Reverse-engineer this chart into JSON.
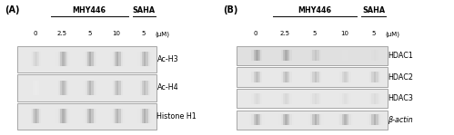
{
  "fig_bg": "#d8d8d8",
  "panel_bg": "#ffffff",
  "blot_bg": "#e8e8e8",
  "panel_A": {
    "label": "(A)",
    "group_label": "MHY446",
    "group2_label": "SAHA",
    "concentrations": [
      "0",
      "2.5",
      "5",
      "10",
      "5"
    ],
    "uM_label": "(μM)",
    "rows": [
      "Ac-H3",
      "Ac-H4",
      "Histone H1"
    ],
    "band_data": {
      "Ac-H3": [
        0.35,
        0.8,
        0.9,
        0.85,
        0.8
      ],
      "Ac-H4": [
        0.05,
        0.72,
        0.78,
        0.72,
        0.68
      ],
      "Histone H1": [
        0.75,
        0.85,
        0.9,
        0.8,
        0.85
      ]
    }
  },
  "panel_B": {
    "label": "(B)",
    "group_label": "MHY446",
    "group2_label": "SAHA",
    "concentrations": [
      "0",
      "2.5",
      "5",
      "10",
      "5"
    ],
    "uM_label": "(μM)",
    "rows": [
      "HDAC1",
      "HDAC2",
      "HDAC3",
      "β-actin"
    ],
    "band_data": {
      "HDAC1": [
        0.9,
        0.85,
        0.5,
        0.12,
        0.18
      ],
      "HDAC2": [
        0.65,
        0.65,
        0.6,
        0.45,
        0.58
      ],
      "HDAC3": [
        0.28,
        0.32,
        0.28,
        0.22,
        0.28
      ],
      "β-actin": [
        0.82,
        0.85,
        0.85,
        0.8,
        0.82
      ]
    }
  },
  "font_size_label": 5.8,
  "font_size_small": 5.0,
  "font_size_panel": 7.0
}
